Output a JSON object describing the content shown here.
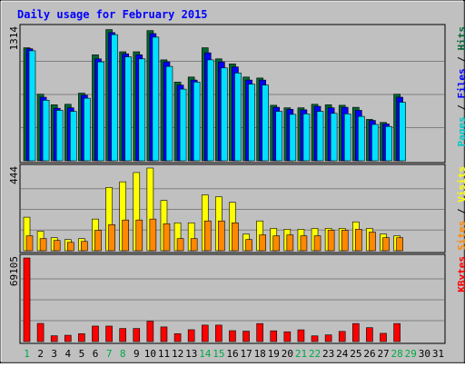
{
  "chart_data": {
    "type": "bar",
    "title": "Daily usage for February 2015",
    "categories": [
      "1",
      "2",
      "3",
      "4",
      "5",
      "6",
      "7",
      "8",
      "9",
      "10",
      "11",
      "12",
      "13",
      "14",
      "15",
      "16",
      "17",
      "18",
      "19",
      "20",
      "21",
      "22",
      "23",
      "24",
      "25",
      "26",
      "27",
      "28",
      "29",
      "30",
      "31"
    ],
    "weekend_days": [
      "1",
      "7",
      "8",
      "14",
      "15",
      "21",
      "22",
      "28",
      "29"
    ],
    "panels": [
      {
        "id": "top",
        "ymax_label": "1314",
        "ymax": 1314,
        "right_labels": [
          {
            "text": "Pages",
            "color": "#00c8c8"
          },
          {
            "text": " / ",
            "color": "#000000"
          },
          {
            "text": "Files",
            "color": "#0000ff"
          },
          {
            "text": " / ",
            "color": "#000000"
          },
          {
            "text": "Hits",
            "color": "#006633"
          }
        ],
        "series": [
          {
            "name": "Hits",
            "color": "#006633",
            "values": [
              1120,
              660,
              555,
              560,
              670,
              1050,
              1300,
              1080,
              1080,
              1290,
              1000,
              780,
              830,
              1120,
              1010,
              960,
              830,
              820,
              550,
              525,
              525,
              560,
              555,
              550,
              530,
              410,
              380,
              660,
              0,
              0,
              0
            ]
          },
          {
            "name": "Files",
            "color": "#0000ff",
            "values": [
              1110,
              630,
              520,
              525,
              650,
              1010,
              1270,
              1060,
              1050,
              1260,
              980,
              750,
              800,
              1070,
              980,
              930,
              800,
              800,
              530,
              510,
              505,
              540,
              525,
              530,
              500,
              400,
              365,
              630,
              0,
              0,
              0
            ]
          },
          {
            "name": "Pages",
            "color": "#00e0ff",
            "values": [
              1090,
              600,
              500,
              490,
              620,
              980,
              1250,
              1030,
              1010,
              1225,
              935,
              710,
              780,
              1000,
              920,
              870,
              760,
              750,
              490,
              460,
              465,
              490,
              470,
              465,
              440,
              360,
              340,
              580,
              0,
              0,
              0
            ]
          }
        ]
      },
      {
        "id": "middle",
        "ymax_label": "444",
        "ymax": 444,
        "right_labels": [
          {
            "text": "Sites",
            "color": "#ff8800"
          },
          {
            "text": " / ",
            "color": "#000000"
          },
          {
            "text": "Visits",
            "color": "#ffff00"
          }
        ],
        "series": [
          {
            "name": "Visits",
            "color": "#ffff00",
            "values": [
              180,
              105,
              70,
              60,
              65,
              170,
              340,
              370,
              420,
              444,
              270,
              150,
              150,
              300,
              290,
              260,
              90,
              160,
              120,
              115,
              115,
              120,
              120,
              120,
              155,
              120,
              90,
              80,
              0,
              0,
              0
            ]
          },
          {
            "name": "Sites",
            "color": "#ff8800",
            "values": [
              80,
              65,
              55,
              45,
              50,
              110,
              140,
              165,
              165,
              170,
              145,
              65,
              65,
              160,
              160,
              150,
              60,
              85,
              80,
              85,
              80,
              80,
              110,
              110,
              115,
              100,
              70,
              70,
              0,
              0,
              0
            ]
          }
        ]
      },
      {
        "id": "bottom",
        "ymax_label": "69105",
        "ymax": 69105,
        "right_labels": [
          {
            "text": "KBytes",
            "color": "#ff0000"
          }
        ],
        "series": [
          {
            "name": "KBytes",
            "color": "#ff0000",
            "values": [
              69105,
              15000,
              4800,
              5200,
              6500,
              12800,
              12800,
              10800,
              10800,
              16800,
              12100,
              6500,
              9800,
              13600,
              13600,
              9000,
              8600,
              14900,
              8900,
              8100,
              9700,
              4700,
              5500,
              8400,
              14900,
              11500,
              6800,
              14900,
              0,
              0,
              0
            ]
          }
        ]
      }
    ],
    "grid": true
  }
}
